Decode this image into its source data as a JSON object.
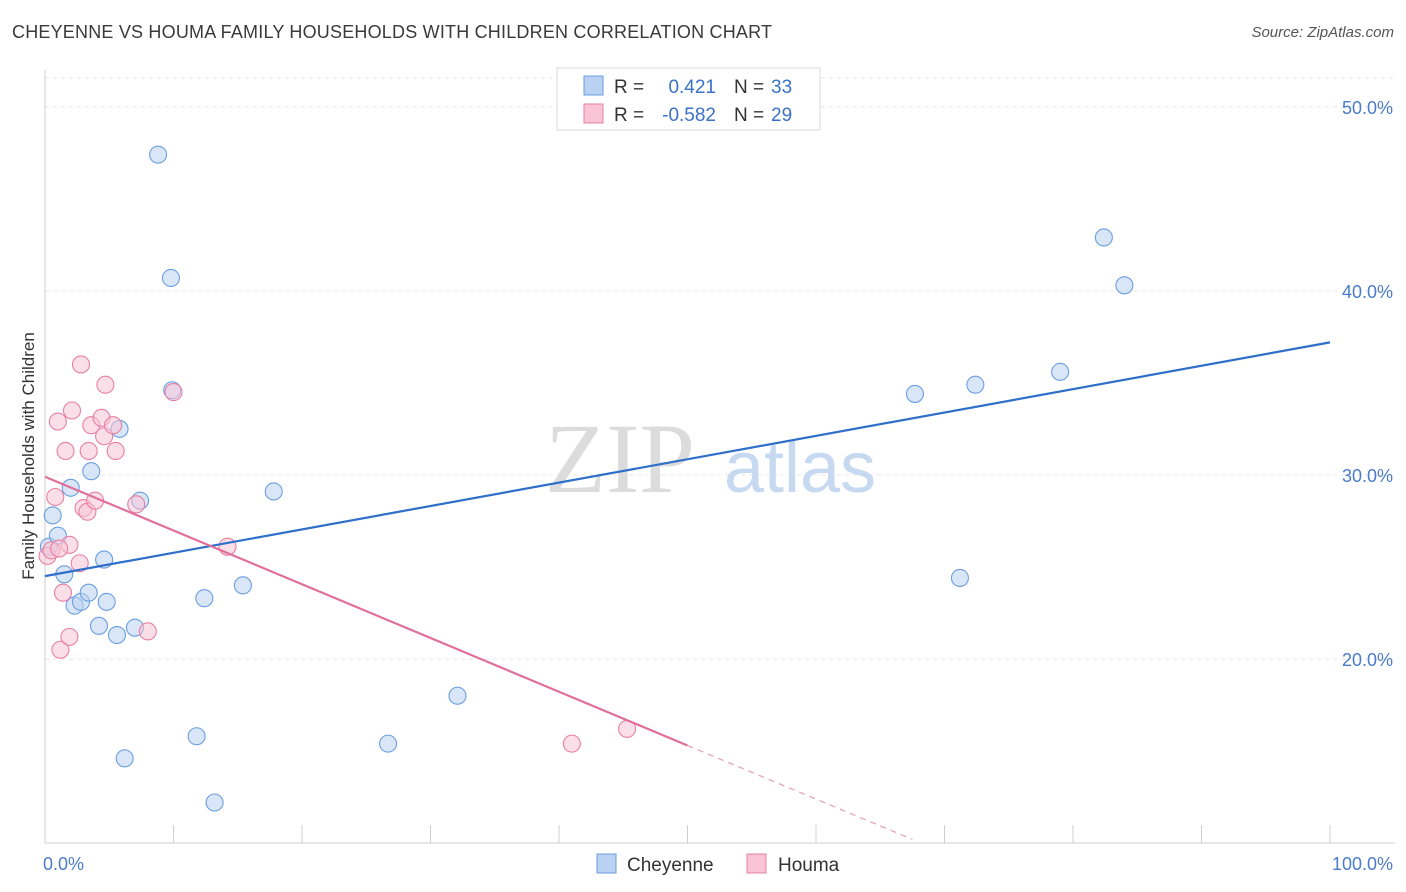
{
  "title": "CHEYENNE VS HOUMA FAMILY HOUSEHOLDS WITH CHILDREN CORRELATION CHART",
  "source": "Source: ZipAtlas.com",
  "chart_data": {
    "type": "scatter",
    "title": "CHEYENNE VS HOUMA FAMILY HOUSEHOLDS WITH CHILDREN CORRELATION CHART",
    "xlabel": "",
    "ylabel": "Family Households with Children",
    "xlim": [
      0,
      100
    ],
    "ylim": [
      10,
      52
    ],
    "x_tick_labels": [
      "0.0%",
      "100.0%"
    ],
    "y_ticks": [
      20,
      30,
      40,
      50
    ],
    "y_tick_labels": [
      "20.0%",
      "30.0%",
      "40.0%",
      "50.0%"
    ],
    "grid": true,
    "legend_position": "top-center",
    "watermark": "ZIPatlas",
    "series": [
      {
        "name": "Cheyenne",
        "color": "#6b9ee0",
        "fill": "#b9d2f3",
        "R": "0.421",
        "N": "33",
        "trend": {
          "x0": 0,
          "y0": 24.5,
          "x1": 100,
          "y1": 37.2
        },
        "points": [
          [
            0.3,
            26.1
          ],
          [
            0.6,
            27.8
          ],
          [
            1.0,
            26.7
          ],
          [
            1.5,
            24.6
          ],
          [
            2.0,
            29.3
          ],
          [
            2.3,
            22.9
          ],
          [
            2.8,
            23.1
          ],
          [
            3.4,
            23.6
          ],
          [
            3.6,
            30.2
          ],
          [
            4.2,
            21.8
          ],
          [
            4.6,
            25.4
          ],
          [
            4.8,
            23.1
          ],
          [
            5.6,
            21.3
          ],
          [
            5.8,
            32.5
          ],
          [
            6.2,
            14.6
          ],
          [
            7.0,
            21.7
          ],
          [
            7.4,
            28.6
          ],
          [
            8.8,
            47.4
          ],
          [
            9.8,
            40.7
          ],
          [
            9.9,
            34.6
          ],
          [
            11.8,
            15.8
          ],
          [
            12.4,
            23.3
          ],
          [
            13.2,
            12.2
          ],
          [
            15.4,
            24.0
          ],
          [
            17.8,
            29.1
          ],
          [
            26.7,
            15.4
          ],
          [
            32.1,
            18.0
          ],
          [
            67.7,
            34.4
          ],
          [
            71.2,
            24.4
          ],
          [
            72.4,
            34.9
          ],
          [
            79.0,
            35.6
          ],
          [
            82.4,
            42.9
          ],
          [
            84.0,
            40.3
          ]
        ]
      },
      {
        "name": "Houma",
        "color": "#e87fa3",
        "fill": "#f8c4d6",
        "R": "-0.582",
        "N": "29",
        "trend": {
          "x0": 0,
          "y0": 29.9,
          "x1": 50,
          "y1": 15.3
        },
        "trend_dashed": {
          "x0": 50,
          "y0": 15.3,
          "x1": 67.5,
          "y1": 10.2
        },
        "points": [
          [
            0.2,
            25.6
          ],
          [
            0.8,
            28.8
          ],
          [
            1.0,
            32.9
          ],
          [
            1.2,
            20.5
          ],
          [
            1.4,
            23.6
          ],
          [
            1.6,
            31.3
          ],
          [
            1.9,
            21.2
          ],
          [
            1.9,
            26.2
          ],
          [
            2.1,
            33.5
          ],
          [
            2.7,
            25.2
          ],
          [
            2.8,
            36.0
          ],
          [
            3.0,
            28.2
          ],
          [
            3.3,
            28.0
          ],
          [
            3.4,
            31.3
          ],
          [
            3.6,
            32.7
          ],
          [
            3.9,
            28.6
          ],
          [
            4.4,
            33.1
          ],
          [
            4.6,
            32.1
          ],
          [
            4.7,
            34.9
          ],
          [
            5.3,
            32.7
          ],
          [
            5.5,
            31.3
          ],
          [
            7.1,
            28.4
          ],
          [
            8.0,
            21.5
          ],
          [
            10.0,
            34.5
          ],
          [
            14.2,
            26.1
          ],
          [
            41.0,
            15.4
          ],
          [
            45.3,
            16.2
          ],
          [
            0.5,
            25.9
          ],
          [
            1.1,
            26.0
          ]
        ]
      }
    ]
  }
}
